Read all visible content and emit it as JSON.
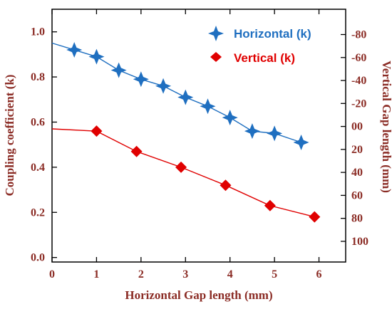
{
  "chart_data": {
    "type": "line",
    "xlabel": "Horizontal Gap length (mm)",
    "ylabel": "Coupling coefficient (k)",
    "y2label": "Vertical Gap length (mm)",
    "xlim": [
      0,
      6.6
    ],
    "ylim": [
      -0.02,
      1.1
    ],
    "y2lim": [
      -102,
      118
    ],
    "y2_inverted": true,
    "xticks": [
      0,
      1,
      2,
      3,
      4,
      5,
      6
    ],
    "xtick_labels": [
      "0",
      "1",
      "2",
      "3",
      "4",
      "5",
      "6"
    ],
    "yticks": [
      0.0,
      0.2,
      0.4,
      0.6,
      0.8,
      1.0
    ],
    "ytick_labels": [
      "0.0",
      "0.2",
      "0.4",
      "0.6",
      "0.8",
      "1.0"
    ],
    "y2ticks": [
      -80,
      -60,
      -40,
      -20,
      0,
      20,
      40,
      60,
      80,
      100
    ],
    "y2tick_labels": [
      "-80",
      "-60",
      "-40",
      "-20",
      "00",
      "20",
      "40",
      "60",
      "80",
      "100"
    ],
    "legend_position": "top-right",
    "series": [
      {
        "name": "Horizontal (k)",
        "color": "#1f6fc0",
        "marker": "four-point-star",
        "x": [
          0.5,
          1.0,
          1.5,
          2.0,
          2.5,
          3.0,
          3.5,
          4.0,
          4.5,
          5.0,
          5.6
        ],
        "values": [
          0.92,
          0.89,
          0.83,
          0.79,
          0.76,
          0.71,
          0.67,
          0.62,
          0.56,
          0.55,
          0.51
        ],
        "line_start": {
          "x": 0.0,
          "y": 0.95
        }
      },
      {
        "name": "Vertical (k)",
        "color": "#e00000",
        "marker": "diamond",
        "x": [
          1.0,
          1.9,
          2.9,
          3.9,
          4.9,
          5.9
        ],
        "values": [
          0.56,
          0.47,
          0.4,
          0.32,
          0.23,
          0.18
        ],
        "line_start": {
          "x": 0.0,
          "y": 0.57
        }
      }
    ]
  }
}
